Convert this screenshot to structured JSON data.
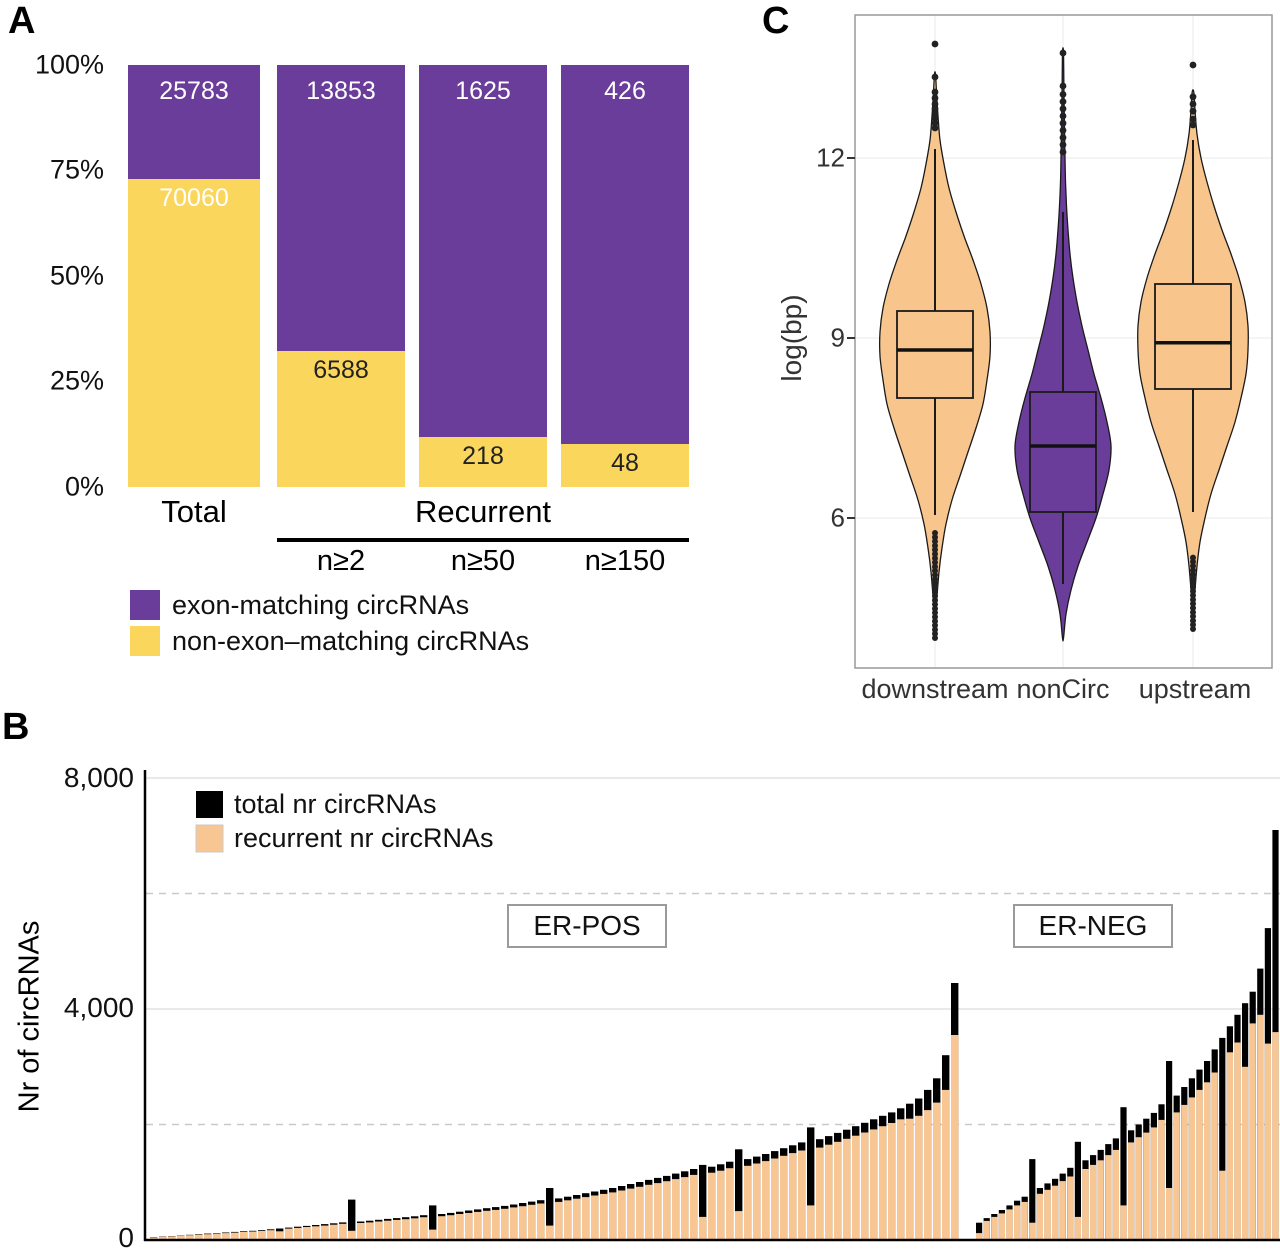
{
  "chart_data": [
    {
      "panel_label": "A",
      "type": "bar",
      "subtype": "percent-stacked",
      "categories": [
        "Total",
        "n≥2",
        "n≥50",
        "n≥150"
      ],
      "first_label": "Total",
      "group_label": "Recurrent",
      "recurrent_groups": [
        "n≥2",
        "n≥50",
        "n≥150"
      ],
      "y_ticks": [
        "100%",
        "75%",
        "50%",
        "25%",
        "0%"
      ],
      "series": [
        {
          "name": "exon-matching circRNAs",
          "color": "#6a3d9a",
          "values": [
            25783,
            13853,
            1625,
            426
          ]
        },
        {
          "name": "non-exon–matching circRNAs",
          "color": "#fbd65d",
          "values": [
            70060,
            6588,
            218,
            48
          ]
        }
      ]
    },
    {
      "panel_label": "C",
      "type": "violin",
      "ylabel": "log(bp)",
      "y_ticks": [
        6,
        9,
        12
      ],
      "categories": [
        "downstream",
        "nonCirc",
        "upstream"
      ],
      "violins": [
        {
          "name": "downstream",
          "color": "#f8c68d",
          "box_halfwidth": 38,
          "profile": [
            [
              4.35,
              0.5
            ],
            [
              4.7,
              2
            ],
            [
              5.1,
              4
            ],
            [
              5.5,
              7
            ],
            [
              5.9,
              11
            ],
            [
              6.3,
              17
            ],
            [
              6.7,
              25
            ],
            [
              7.1,
              33
            ],
            [
              7.5,
              41
            ],
            [
              7.9,
              48
            ],
            [
              8.3,
              52
            ],
            [
              8.7,
              55
            ],
            [
              9.1,
              55
            ],
            [
              9.5,
              52
            ],
            [
              9.9,
              46
            ],
            [
              10.3,
              38
            ],
            [
              10.7,
              29
            ],
            [
              11.1,
              21
            ],
            [
              11.5,
              14
            ],
            [
              11.9,
              9
            ],
            [
              12.3,
              5
            ],
            [
              12.7,
              3
            ],
            [
              13.1,
              1.5
            ],
            [
              13.4,
              0.5
            ]
          ],
          "box": {
            "q1": 8.0,
            "median": 8.8,
            "q3": 9.45,
            "whisker_low": 6.05,
            "whisker_high": 12.15
          },
          "outliers_high": [
            12.5,
            12.58,
            12.66,
            12.74,
            12.82,
            12.9,
            13.0,
            13.1,
            13.35,
            13.9
          ],
          "outliers_low_range": [
            4.0,
            5.8
          ]
        },
        {
          "name": "nonCirc",
          "color": "#6a3d9a",
          "box_halfwidth": 33,
          "profile": [
            [
              4.0,
              0.5
            ],
            [
              4.4,
              3
            ],
            [
              4.8,
              8
            ],
            [
              5.2,
              15
            ],
            [
              5.6,
              24
            ],
            [
              6.0,
              33
            ],
            [
              6.4,
              40
            ],
            [
              6.8,
              46
            ],
            [
              7.2,
              48
            ],
            [
              7.6,
              44
            ],
            [
              8.0,
              38
            ],
            [
              8.4,
              31
            ],
            [
              8.8,
              25
            ],
            [
              9.2,
              19
            ],
            [
              9.6,
              14
            ],
            [
              10.0,
              10
            ],
            [
              10.4,
              7
            ],
            [
              10.8,
              5
            ],
            [
              11.2,
              3.5
            ],
            [
              11.6,
              2.5
            ],
            [
              12.0,
              2
            ],
            [
              12.5,
              1.5
            ],
            [
              13.0,
              1
            ],
            [
              13.5,
              0.7
            ],
            [
              13.8,
              0.4
            ]
          ],
          "box": {
            "q1": 6.1,
            "median": 7.2,
            "q3": 8.1,
            "whisker_low": 4.9,
            "whisker_high": 11.1
          },
          "outliers_high": [
            12.1,
            12.22,
            12.34,
            12.46,
            12.58,
            12.7,
            12.82,
            12.94,
            13.06,
            13.2,
            13.75
          ],
          "outliers_low_range": null
        },
        {
          "name": "upstream",
          "color": "#f8c68d",
          "box_halfwidth": 38,
          "profile": [
            [
              4.4,
              0.5
            ],
            [
              4.8,
              2
            ],
            [
              5.2,
              4
            ],
            [
              5.6,
              7
            ],
            [
              6.0,
              12
            ],
            [
              6.4,
              18
            ],
            [
              6.8,
              26
            ],
            [
              7.2,
              34
            ],
            [
              7.6,
              42
            ],
            [
              8.0,
              48
            ],
            [
              8.4,
              53
            ],
            [
              8.8,
              55
            ],
            [
              9.2,
              55
            ],
            [
              9.6,
              52
            ],
            [
              10.0,
              46
            ],
            [
              10.4,
              38
            ],
            [
              10.8,
              29
            ],
            [
              11.2,
              21
            ],
            [
              11.6,
              14
            ],
            [
              12.0,
              8
            ],
            [
              12.4,
              4
            ],
            [
              12.8,
              2
            ],
            [
              13.1,
              0.8
            ]
          ],
          "box": {
            "q1": 8.15,
            "median": 8.92,
            "q3": 9.9,
            "whisker_low": 6.1,
            "whisker_high": 12.3
          },
          "outliers_high": [
            12.55,
            12.65,
            12.78,
            12.9,
            13.02,
            13.55
          ],
          "outliers_low_range": [
            4.15,
            5.35
          ]
        }
      ]
    },
    {
      "panel_label": "B",
      "type": "bar",
      "subtype": "per-sample-sorted",
      "ylabel": "Nr of circRNAs",
      "y_tick_labels": [
        "0",
        "4,000",
        "8,000"
      ],
      "ylim": [
        0,
        8000
      ],
      "gridlines_solid": [
        4000,
        8000
      ],
      "gridlines_dashed": [
        2000,
        6000
      ],
      "legend": [
        {
          "label": "total nr circRNAs",
          "color": "#000000"
        },
        {
          "label": "recurrent nr circRNAs",
          "color": "#f8c693"
        }
      ],
      "groups": [
        {
          "label": "ER-POS",
          "totals": [
            50,
            60,
            70,
            80,
            90,
            100,
            110,
            120,
            130,
            140,
            150,
            160,
            170,
            185,
            200,
            215,
            230,
            245,
            260,
            275,
            290,
            305,
            700,
            320,
            335,
            350,
            365,
            380,
            395,
            410,
            430,
            600,
            450,
            470,
            490,
            510,
            530,
            550,
            570,
            590,
            615,
            640,
            665,
            690,
            900,
            720,
            750,
            780,
            810,
            840,
            870,
            900,
            935,
            970,
            1005,
            1040,
            1075,
            1110,
            1150,
            1190,
            1230,
            1300,
            1270,
            1310,
            1355,
            1570,
            1400,
            1445,
            1490,
            1540,
            1590,
            1640,
            1690,
            1950,
            1745,
            1800,
            1855,
            1910,
            1970,
            2030,
            2090,
            2150,
            2210,
            2280,
            2360,
            2450,
            2600,
            2800,
            3200,
            4450
          ],
          "recurrent": [
            45,
            55,
            64,
            74,
            83,
            92,
            101,
            110,
            120,
            128,
            138,
            147,
            156,
            170,
            150,
            198,
            210,
            225,
            238,
            250,
            265,
            280,
            160,
            295,
            305,
            320,
            335,
            348,
            360,
            375,
            395,
            180,
            412,
            430,
            450,
            468,
            486,
            505,
            522,
            540,
            565,
            585,
            610,
            632,
            250,
            660,
            688,
            715,
            742,
            770,
            798,
            825,
            858,
            890,
            922,
            955,
            986,
            1018,
            1055,
            1090,
            1128,
            400,
            1165,
            1200,
            1243,
            500,
            1285,
            1325,
            1367,
            1412,
            1458,
            1504,
            1550,
            600,
            1600,
            1650,
            1700,
            1752,
            1806,
            1862,
            1916,
            1970,
            2026,
            2090,
            2100,
            2150,
            2250,
            2380,
            2600,
            3550
          ]
        },
        {
          "label": "ER-NEG",
          "totals": [
            300,
            380,
            450,
            520,
            600,
            680,
            750,
            1400,
            900,
            980,
            1060,
            1150,
            1250,
            1700,
            1380,
            1470,
            1560,
            1660,
            1760,
            2300,
            1900,
            2000,
            2100,
            2200,
            2350,
            3100,
            2500,
            2650,
            2800,
            2950,
            3100,
            3300,
            3500,
            3700,
            3900,
            4100,
            4300,
            4700,
            5400,
            7100
          ],
          "recurrent": [
            120,
            330,
            400,
            460,
            530,
            600,
            660,
            300,
            800,
            870,
            940,
            1020,
            1100,
            400,
            1230,
            1300,
            1380,
            1470,
            1560,
            600,
            1690,
            1780,
            1860,
            1950,
            2080,
            900,
            2210,
            2340,
            2470,
            2600,
            2730,
            2900,
            1200,
            3250,
            3420,
            3000,
            3750,
            3900,
            3400,
            3600
          ]
        }
      ]
    }
  ]
}
